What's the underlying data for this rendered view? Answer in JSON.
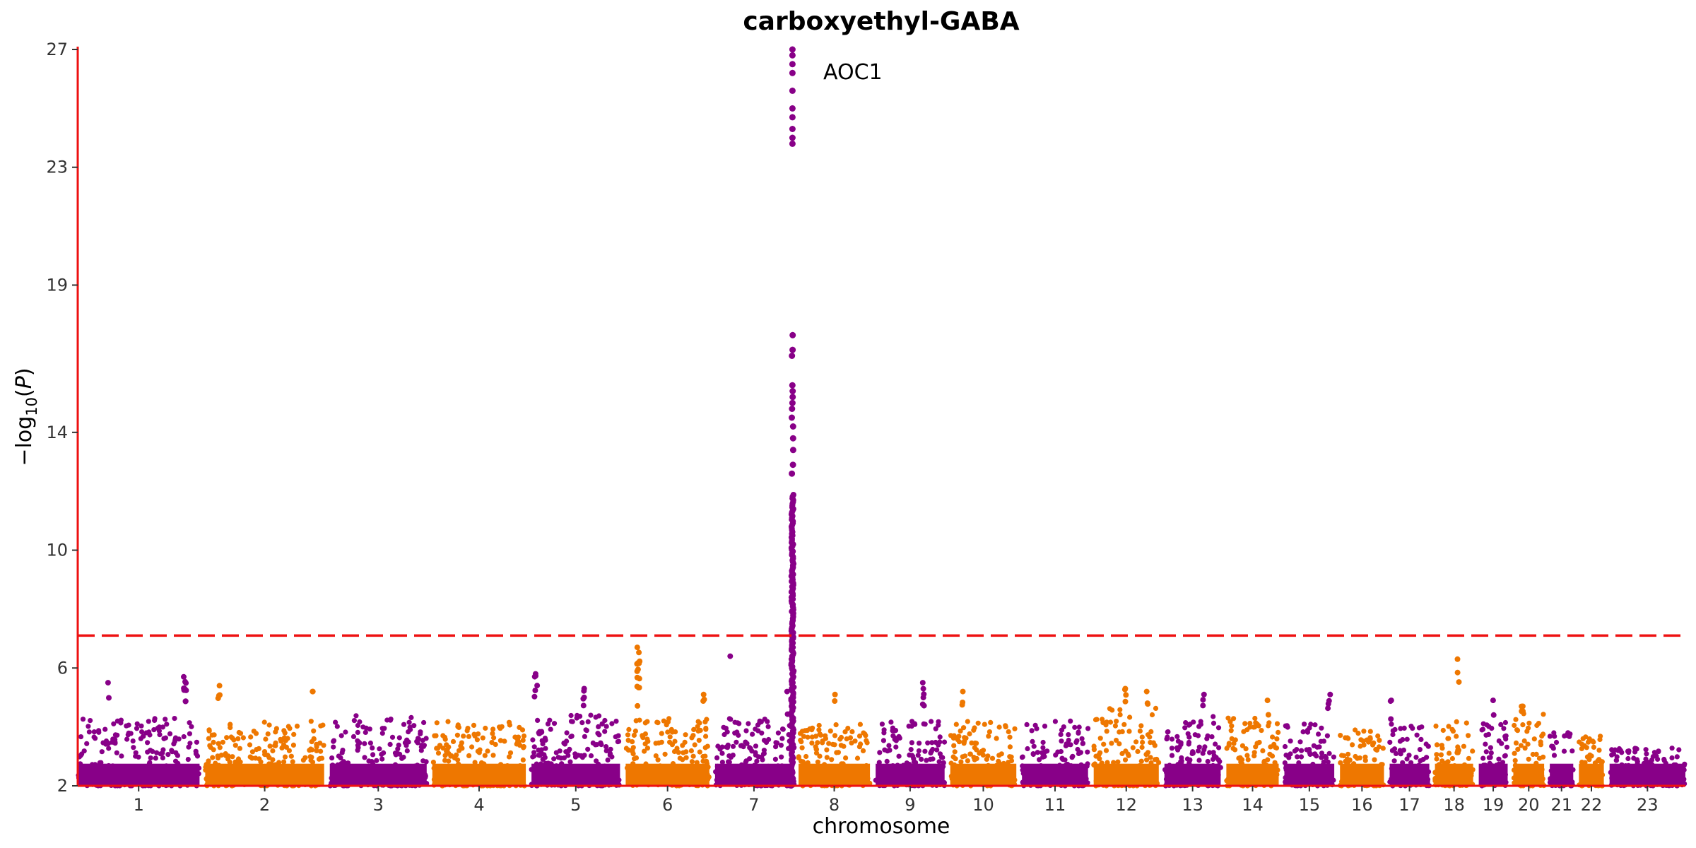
{
  "chart_data": {
    "type": "scatter",
    "subtype": "manhattan",
    "title": "carboxyethyl-GABA",
    "xlabel": "chromosome",
    "ylabel": "−log10(P)",
    "ylim": [
      2,
      27
    ],
    "yticks": [
      "2",
      "6",
      "10",
      "14",
      "19",
      "23",
      "27"
    ],
    "colors": [
      "#880088",
      "#ee7700"
    ],
    "threshold": {
      "value": 7.1,
      "color": "#ee1111",
      "style": "dashed"
    },
    "grid": false,
    "chromosomes": [
      {
        "label": "1",
        "size": 249,
        "color_index": 0,
        "base_max": 4.3
      },
      {
        "label": "2",
        "size": 243,
        "color_index": 1,
        "base_max": 4.2
      },
      {
        "label": "3",
        "size": 198,
        "color_index": 0,
        "base_max": 4.4
      },
      {
        "label": "4",
        "size": 191,
        "color_index": 1,
        "base_max": 4.2
      },
      {
        "label": "5",
        "size": 181,
        "color_index": 0,
        "base_max": 4.4
      },
      {
        "label": "6",
        "size": 171,
        "color_index": 1,
        "base_max": 4.3
      },
      {
        "label": "7",
        "size": 159,
        "color_index": 0,
        "base_max": 4.3
      },
      {
        "label": "8",
        "size": 146,
        "color_index": 1,
        "base_max": 4.1
      },
      {
        "label": "9",
        "size": 141,
        "color_index": 0,
        "base_max": 4.2
      },
      {
        "label": "10",
        "size": 135,
        "color_index": 1,
        "base_max": 4.2
      },
      {
        "label": "11",
        "size": 135,
        "color_index": 0,
        "base_max": 4.2
      },
      {
        "label": "12",
        "size": 133,
        "color_index": 1,
        "base_max": 4.7
      },
      {
        "label": "13",
        "size": 115,
        "color_index": 0,
        "base_max": 4.4
      },
      {
        "label": "14",
        "size": 107,
        "color_index": 1,
        "base_max": 4.3
      },
      {
        "label": "15",
        "size": 102,
        "color_index": 0,
        "base_max": 4.1
      },
      {
        "label": "16",
        "size": 90,
        "color_index": 1,
        "base_max": 3.9
      },
      {
        "label": "17",
        "size": 81,
        "color_index": 0,
        "base_max": 4.1
      },
      {
        "label": "18",
        "size": 78,
        "color_index": 1,
        "base_max": 4.2
      },
      {
        "label": "19",
        "size": 59,
        "color_index": 0,
        "base_max": 4.2
      },
      {
        "label": "20",
        "size": 63,
        "color_index": 1,
        "base_max": 4.5
      },
      {
        "label": "21",
        "size": 48,
        "color_index": 0,
        "base_max": 3.9
      },
      {
        "label": "22",
        "size": 51,
        "color_index": 1,
        "base_max": 3.7
      },
      {
        "label": "23",
        "size": 155,
        "color_index": 0,
        "base_max": 3.3
      }
    ],
    "peaks": [
      {
        "chromosome": "1",
        "pos": 0.88,
        "top": 5.7,
        "count": 10
      },
      {
        "chromosome": "1",
        "pos": 0.25,
        "top": 5.5,
        "count": 2
      },
      {
        "chromosome": "2",
        "pos": 0.12,
        "top": 5.4,
        "count": 4
      },
      {
        "chromosome": "2",
        "pos": 0.9,
        "top": 5.2,
        "count": 2
      },
      {
        "chromosome": "5",
        "pos": 0.05,
        "top": 5.8,
        "count": 6
      },
      {
        "chromosome": "5",
        "pos": 0.6,
        "top": 5.3,
        "count": 5
      },
      {
        "chromosome": "6",
        "pos": 0.15,
        "top": 6.7,
        "count": 14
      },
      {
        "chromosome": "6",
        "pos": 0.94,
        "top": 5.1,
        "count": 3
      },
      {
        "chromosome": "7",
        "pos": 0.2,
        "top": 6.4,
        "count": 1
      },
      {
        "chromosome": "7",
        "pos": 0.92,
        "top": 5.2,
        "count": 2
      },
      {
        "chromosome": "8",
        "pos": 0.5,
        "top": 5.1,
        "count": 2
      },
      {
        "chromosome": "9",
        "pos": 0.7,
        "top": 5.5,
        "count": 6
      },
      {
        "chromosome": "10",
        "pos": 0.2,
        "top": 5.2,
        "count": 3
      },
      {
        "chromosome": "12",
        "pos": 0.48,
        "top": 5.3,
        "count": 4
      },
      {
        "chromosome": "12",
        "pos": 0.82,
        "top": 5.2,
        "count": 3
      },
      {
        "chromosome": "13",
        "pos": 0.7,
        "top": 5.1,
        "count": 3
      },
      {
        "chromosome": "14",
        "pos": 0.8,
        "top": 4.9,
        "count": 2
      },
      {
        "chromosome": "15",
        "pos": 0.9,
        "top": 5.1,
        "count": 4
      },
      {
        "chromosome": "17",
        "pos": 0.05,
        "top": 4.9,
        "count": 3
      },
      {
        "chromosome": "18",
        "pos": 0.6,
        "top": 6.3,
        "count": 3
      },
      {
        "chromosome": "19",
        "pos": 0.5,
        "top": 4.9,
        "count": 2
      },
      {
        "chromosome": "20",
        "pos": 0.3,
        "top": 4.7,
        "count": 4
      }
    ],
    "lead_locus": {
      "label": "AOC1",
      "chromosome": "7",
      "pos": 0.995,
      "top_values": [
        27.0,
        26.8,
        26.5,
        26.2,
        25.6,
        25.0,
        24.7,
        24.3,
        24.0,
        23.8
      ],
      "mid_values": [
        17.3,
        16.8,
        16.6,
        15.6,
        15.4,
        15.2,
        15.0,
        14.8,
        14.5,
        14.2,
        13.8,
        13.4,
        12.9,
        12.6
      ],
      "dense_range": [
        7.2,
        11.9
      ]
    }
  }
}
